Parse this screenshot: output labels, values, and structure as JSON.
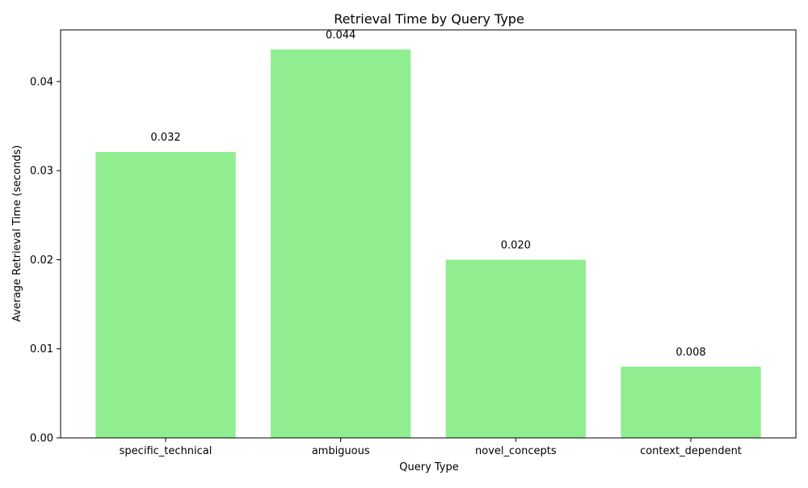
{
  "chart_data": {
    "type": "bar",
    "title": "Retrieval Time by Query Type",
    "xlabel": "Query Type",
    "ylabel": "Average Retrieval Time (seconds)",
    "categories": [
      "specific_technical",
      "ambiguous",
      "novel_concepts",
      "context_dependent"
    ],
    "values": [
      0.0321,
      0.0436,
      0.02,
      0.008
    ],
    "data_labels": [
      "0.032",
      "0.044",
      "0.020",
      "0.008"
    ],
    "ylim": [
      0,
      0.0458
    ],
    "yticks": [
      0.0,
      0.01,
      0.02,
      0.03,
      0.04
    ],
    "ytick_labels": [
      "0.00",
      "0.01",
      "0.02",
      "0.03",
      "0.04"
    ],
    "grid": false,
    "bar_color": "#90ee90"
  }
}
